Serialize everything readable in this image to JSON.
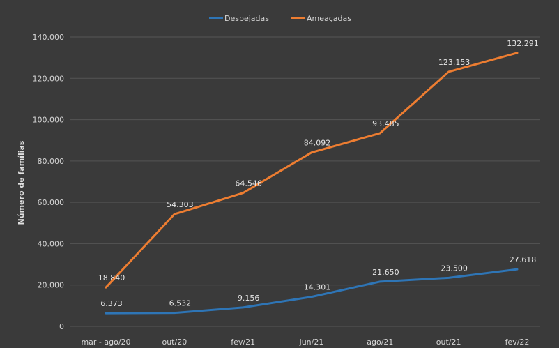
{
  "chart_data": {
    "type": "line",
    "title": "",
    "xlabel": "",
    "ylabel": "Número de famílias",
    "ylim": [
      0,
      140000
    ],
    "yticks": [
      0,
      20000,
      40000,
      60000,
      80000,
      100000,
      120000,
      140000
    ],
    "ytick_labels": [
      "0",
      "20.000",
      "40.000",
      "60.000",
      "80.000",
      "100.000",
      "120.000",
      "140.000"
    ],
    "categories": [
      "mar - ago/20",
      "out/20",
      "fev/21",
      "jun/21",
      "ago/21",
      "out/21",
      "fev/22"
    ],
    "grid": true,
    "legend_position": "top",
    "series": [
      {
        "name": "Despejadas",
        "color": "#2e75b6",
        "values": [
          6373,
          6532,
          9156,
          14301,
          21650,
          23500,
          27618
        ],
        "labels": [
          "6.373",
          "6.532",
          "9.156",
          "14.301",
          "21.650",
          "23.500",
          "27.618"
        ]
      },
      {
        "name": "Ameaçadas",
        "color": "#ed7d31",
        "values": [
          18840,
          54303,
          64546,
          84092,
          93485,
          123153,
          132291
        ],
        "labels": [
          "18.840",
          "54.303",
          "64.546",
          "84.092",
          "93.485",
          "123.153",
          "132.291"
        ]
      }
    ]
  }
}
